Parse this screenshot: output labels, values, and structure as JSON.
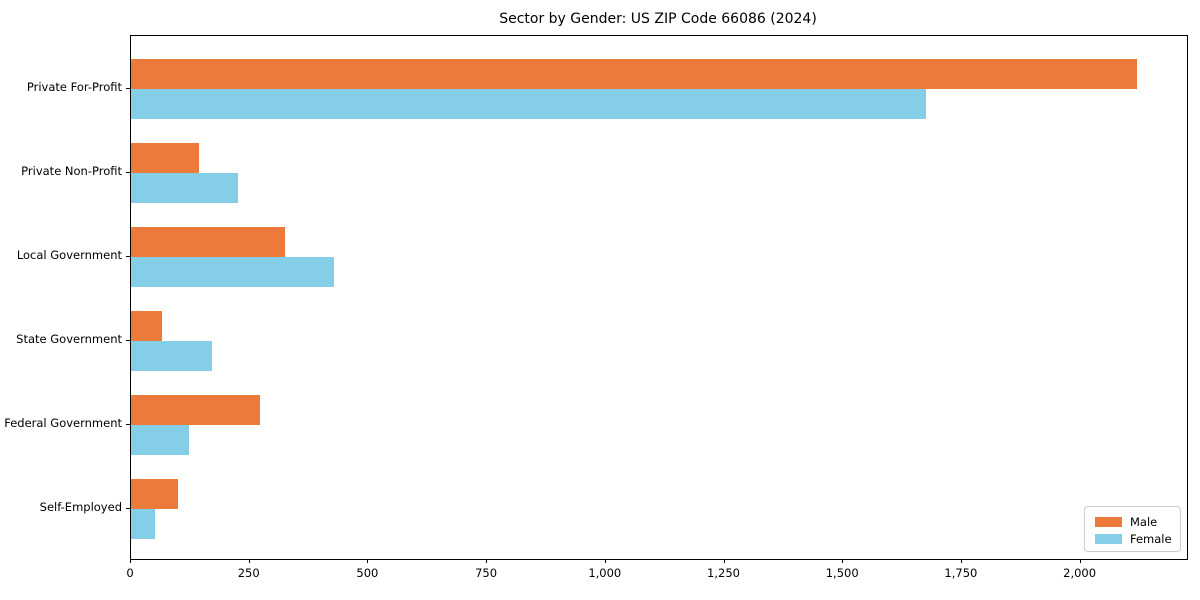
{
  "chart_data": {
    "type": "bar",
    "orientation": "horizontal",
    "title": "Sector by Gender: US ZIP Code 66086 (2024)",
    "categories": [
      "Private For-Profit",
      "Private Non-Profit",
      "Local Government",
      "State Government",
      "Federal Government",
      "Self-Employed"
    ],
    "series": [
      {
        "name": "Male",
        "color": "#EB7A3B",
        "values": [
          2118,
          143,
          324,
          65,
          272,
          99
        ]
      },
      {
        "name": "Female",
        "color": "#85CEE8",
        "values": [
          1674,
          225,
          427,
          171,
          122,
          51
        ]
      }
    ],
    "xlim": [
      0,
      2224
    ],
    "xticks": [
      0,
      250,
      500,
      750,
      1000,
      1250,
      1500,
      1750,
      2000
    ],
    "xtick_labels": [
      "0",
      "250",
      "500",
      "750",
      "1,000",
      "1,250",
      "1,500",
      "1,750",
      "2,000"
    ],
    "xlabel": "",
    "ylabel": "",
    "grid": false,
    "legend": {
      "position": "lower right",
      "entries": [
        "Male",
        "Female"
      ]
    }
  }
}
